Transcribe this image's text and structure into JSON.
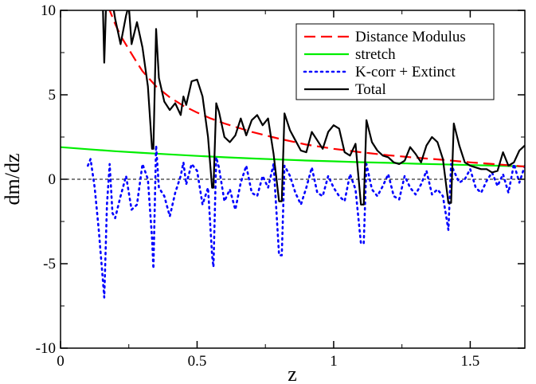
{
  "chart_data": {
    "type": "line",
    "xlabel": "z",
    "ylabel": "dm/dz",
    "xlim": [
      0,
      1.7
    ],
    "ylim": [
      -10,
      10
    ],
    "xticks": [
      0,
      0.5,
      1,
      1.5
    ],
    "xtick_labels": [
      "0",
      "0.5",
      "1",
      "1.5"
    ],
    "yticks": [
      -10,
      -5,
      0,
      5,
      10
    ],
    "ytick_labels": [
      "-10",
      "-5",
      "0",
      "5",
      "10"
    ],
    "reference_line": {
      "y": 0,
      "style": "dashed",
      "color": "#000000"
    },
    "grid": false,
    "legend_position": "top-right",
    "series": [
      {
        "name": "Distance Modulus",
        "color": "#ff0000",
        "style": "dashed",
        "x": [
          0.16,
          0.18,
          0.2,
          0.22,
          0.25,
          0.28,
          0.3,
          0.35,
          0.4,
          0.45,
          0.5,
          0.55,
          0.6,
          0.7,
          0.8,
          0.9,
          1.0,
          1.1,
          1.2,
          1.3,
          1.4,
          1.5,
          1.6,
          1.7
        ],
        "y": [
          11.2,
          10.0,
          9.2,
          8.5,
          7.7,
          6.9,
          6.4,
          5.5,
          4.85,
          4.35,
          3.95,
          3.6,
          3.3,
          2.8,
          2.4,
          2.05,
          1.8,
          1.6,
          1.42,
          1.28,
          1.15,
          1.0,
          0.88,
          0.75
        ]
      },
      {
        "name": "stretch",
        "color": "#00ee00",
        "style": "solid",
        "x": [
          0.0,
          0.1,
          0.2,
          0.3,
          0.4,
          0.5,
          0.6,
          0.7,
          0.8,
          0.9,
          1.0,
          1.1,
          1.2,
          1.3,
          1.4,
          1.5,
          1.6,
          1.7
        ],
        "y": [
          1.9,
          1.78,
          1.66,
          1.56,
          1.47,
          1.38,
          1.3,
          1.23,
          1.17,
          1.11,
          1.06,
          1.01,
          0.97,
          0.92,
          0.88,
          0.84,
          0.8,
          0.76
        ]
      },
      {
        "name": "K-corr + Extinct",
        "color": "#0000ff",
        "style": "dotted",
        "x": [
          0.1,
          0.11,
          0.125,
          0.14,
          0.155,
          0.16,
          0.17,
          0.18,
          0.19,
          0.2,
          0.22,
          0.24,
          0.26,
          0.28,
          0.3,
          0.32,
          0.335,
          0.34,
          0.35,
          0.36,
          0.38,
          0.4,
          0.42,
          0.44,
          0.45,
          0.46,
          0.48,
          0.5,
          0.52,
          0.54,
          0.555,
          0.56,
          0.57,
          0.58,
          0.6,
          0.62,
          0.64,
          0.66,
          0.68,
          0.7,
          0.72,
          0.74,
          0.76,
          0.78,
          0.8,
          0.81,
          0.82,
          0.84,
          0.86,
          0.88,
          0.9,
          0.92,
          0.94,
          0.96,
          0.98,
          1.0,
          1.02,
          1.04,
          1.06,
          1.08,
          1.1,
          1.11,
          1.12,
          1.14,
          1.16,
          1.18,
          1.2,
          1.22,
          1.24,
          1.26,
          1.28,
          1.3,
          1.32,
          1.34,
          1.36,
          1.38,
          1.4,
          1.42,
          1.43,
          1.44,
          1.46,
          1.48,
          1.5,
          1.52,
          1.54,
          1.56,
          1.58,
          1.6,
          1.62,
          1.64,
          1.66,
          1.68,
          1.7
        ],
        "y": [
          0.8,
          1.2,
          -0.5,
          -3.0,
          -6.0,
          -7.0,
          -1.5,
          0.9,
          -2.0,
          -2.3,
          -1.0,
          0.2,
          -1.8,
          -1.5,
          0.9,
          0.0,
          -3.5,
          -5.3,
          2.0,
          -0.5,
          -1.0,
          -2.2,
          -0.8,
          0.2,
          1.0,
          -0.3,
          0.9,
          0.5,
          -1.5,
          -0.5,
          -4.5,
          -5.2,
          1.3,
          0.7,
          -1.3,
          -0.6,
          -1.8,
          -0.2,
          0.8,
          -0.8,
          -1.0,
          0.2,
          -0.5,
          0.9,
          -4.5,
          -4.5,
          0.8,
          0.2,
          -0.8,
          -1.5,
          -0.5,
          0.7,
          -0.8,
          -1.0,
          0.2,
          -0.5,
          -1.0,
          -1.3,
          0.3,
          -0.6,
          -3.8,
          -3.8,
          0.9,
          -0.6,
          -1.0,
          -0.4,
          0.3,
          -1.0,
          -1.2,
          0.2,
          -0.5,
          -0.9,
          -0.3,
          0.5,
          -0.9,
          -0.6,
          -1.0,
          -3.0,
          0.9,
          0.5,
          -0.2,
          0.0,
          0.6,
          -0.5,
          -0.8,
          -0.1,
          0.4,
          -0.4,
          0.3,
          -0.8,
          0.9,
          -0.2,
          0.8
        ]
      },
      {
        "name": "Total",
        "color": "#000000",
        "style": "solid",
        "x": [
          0.14,
          0.155,
          0.16,
          0.17,
          0.18,
          0.2,
          0.22,
          0.24,
          0.25,
          0.26,
          0.28,
          0.3,
          0.32,
          0.335,
          0.34,
          0.35,
          0.36,
          0.38,
          0.4,
          0.42,
          0.44,
          0.45,
          0.46,
          0.48,
          0.5,
          0.52,
          0.54,
          0.555,
          0.56,
          0.57,
          0.58,
          0.6,
          0.62,
          0.64,
          0.66,
          0.68,
          0.7,
          0.72,
          0.74,
          0.76,
          0.78,
          0.8,
          0.81,
          0.82,
          0.84,
          0.86,
          0.88,
          0.9,
          0.92,
          0.94,
          0.96,
          0.98,
          1.0,
          1.02,
          1.04,
          1.06,
          1.08,
          1.1,
          1.11,
          1.12,
          1.14,
          1.16,
          1.18,
          1.2,
          1.22,
          1.24,
          1.26,
          1.28,
          1.3,
          1.32,
          1.34,
          1.36,
          1.38,
          1.4,
          1.42,
          1.43,
          1.44,
          1.46,
          1.48,
          1.5,
          1.52,
          1.54,
          1.56,
          1.58,
          1.6,
          1.62,
          1.64,
          1.66,
          1.68,
          1.7
        ],
        "y": [
          10.5,
          10.2,
          6.9,
          12.0,
          11.5,
          9.5,
          8.0,
          9.7,
          10.3,
          8.0,
          9.3,
          7.8,
          5.5,
          1.8,
          1.8,
          8.9,
          6.0,
          4.6,
          4.1,
          4.5,
          3.8,
          4.9,
          4.4,
          5.8,
          5.9,
          4.9,
          2.5,
          -0.5,
          -0.5,
          4.5,
          4.0,
          2.5,
          2.2,
          2.6,
          3.6,
          2.6,
          3.5,
          3.8,
          3.2,
          3.6,
          1.5,
          -1.3,
          -1.3,
          3.9,
          2.9,
          2.3,
          1.7,
          1.6,
          2.8,
          2.3,
          1.8,
          2.8,
          3.2,
          3.0,
          1.6,
          1.4,
          2.1,
          -1.5,
          -1.5,
          3.5,
          2.2,
          1.7,
          1.4,
          1.3,
          1.0,
          0.9,
          1.1,
          1.9,
          1.5,
          1.0,
          2.0,
          2.5,
          2.2,
          1.2,
          -1.4,
          -1.4,
          3.3,
          2.0,
          1.0,
          0.8,
          0.7,
          0.6,
          0.6,
          0.4,
          0.5,
          1.6,
          0.8,
          1.0,
          1.7,
          2.0
        ]
      }
    ]
  }
}
